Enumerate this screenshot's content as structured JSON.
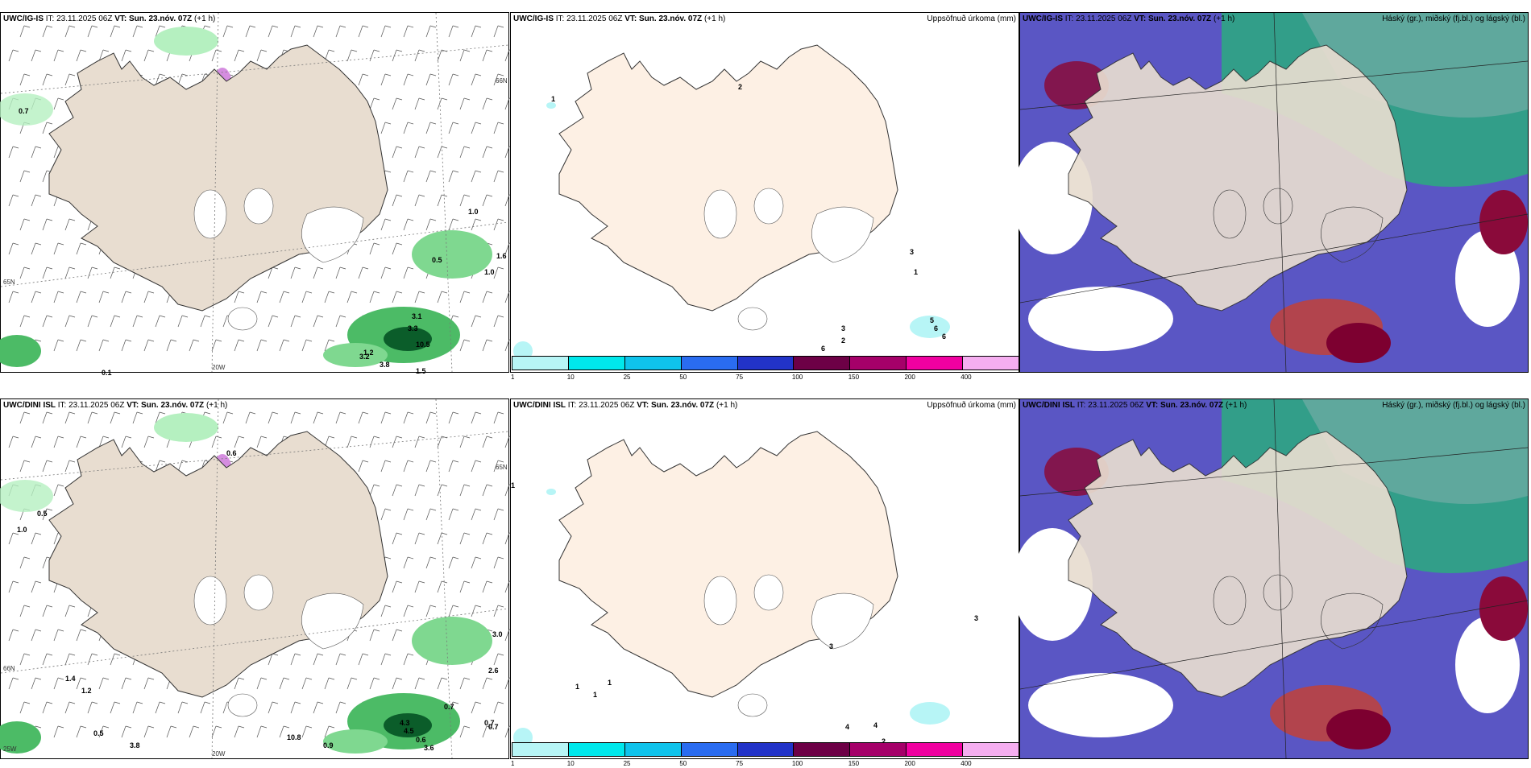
{
  "colors": {
    "land": "#e8ddd0",
    "land_light": "#fdf0e4",
    "precip_colors": [
      "#b7f5f6",
      "#00e8ec",
      "#0fc3ec",
      "#2a6cf0",
      "#2233c8",
      "#6d0046",
      "#a50069",
      "#f000a0",
      "#f5aef0"
    ]
  },
  "panels": [
    {
      "model": "UWC/IG-IS",
      "it": "IT: 23.11.2025 06Z",
      "vt": "VT: Sun. 23.nóv. 07Z",
      "lead": "(+1 h)",
      "right": "",
      "labels": [
        "0.7",
        "1.0",
        "0.5",
        "1.6",
        "1.0",
        "3.3",
        "3.1",
        "3.2",
        "10.5",
        "1.2",
        "3.8",
        "1.5",
        "0.1"
      ],
      "axes": [
        "20W",
        "65N",
        "66N"
      ]
    },
    {
      "model": "UWC/IG-IS",
      "it": "IT: 23.11.2025 06Z",
      "vt": "VT: Sun. 23.nóv. 07Z",
      "lead": "(+1 h)",
      "right": "Uppsöfnuð úrkoma (mm)",
      "labels": [
        "1",
        "2",
        "3",
        "1",
        "5",
        "6",
        "2",
        "6",
        "3",
        "6"
      ],
      "colorbar": [
        "1",
        "10",
        "25",
        "50",
        "75",
        "100",
        "150",
        "200",
        "400"
      ]
    },
    {
      "model": "UWC/IG-IS",
      "it": "IT: 23.11.2025 06Z",
      "vt": "VT: Sun. 23.nóv. 07Z",
      "lead": "(+1 h)",
      "right": "Háský (gr.), miðský (fj.bl.) og lágský (bl.)"
    },
    {
      "model": "UWC/DINI ISL",
      "it": "IT: 23.11.2025 06Z",
      "vt": "VT: Sun. 23.nóv. 07Z",
      "lead": "(+1 h)",
      "right": "",
      "labels": [
        "0.5",
        "0.6",
        "1.0",
        "1.4",
        "1.2",
        "3.0",
        "2.6",
        "0.7",
        "4.3",
        "4.5",
        "0.7",
        "0.7",
        "0.5",
        "3.8",
        "10.8",
        "0.9",
        "0.6",
        "3.6"
      ],
      "axes": [
        "20W",
        "66N",
        "65N",
        "25W"
      ]
    },
    {
      "model": "UWC/DINI ISL",
      "it": "IT: 23.11.2025 06Z",
      "vt": "VT: Sun. 23.nóv. 07Z",
      "lead": "(+1 h)",
      "right": "Uppsöfnuð úrkoma (mm)",
      "labels": [
        "1",
        "1",
        "3",
        "3",
        "1",
        "1",
        "2",
        "4",
        "2",
        "4"
      ],
      "colorbar": [
        "1",
        "10",
        "25",
        "50",
        "75",
        "100",
        "150",
        "200",
        "400"
      ]
    },
    {
      "model": "UWC/DINI ISL",
      "it": "IT: 23.11.2025 06Z",
      "vt": "VT: Sun. 23.nóv. 07Z",
      "lead": "(+1 h)",
      "right": "Háský (gr.), miðský (fj.bl.) og lágský (bl.)"
    }
  ]
}
